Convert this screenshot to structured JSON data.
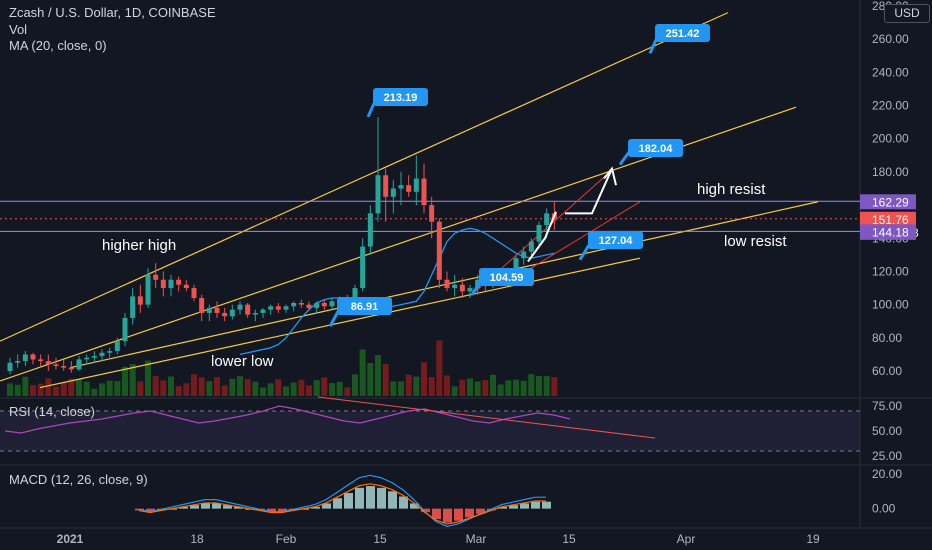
{
  "header": {
    "title": "Zcash / U.S. Dollar, 1D, COINBASE",
    "volume_label": "Vol",
    "ma_label": "MA (20, close, 0)",
    "currency": "USD"
  },
  "price_scale": {
    "ticks": [
      "280.00",
      "260.00",
      "240.00",
      "220.00",
      "200.00",
      "180.00",
      "160.00",
      "140.00",
      "120.00",
      "100.00",
      "80.00",
      "60.00"
    ],
    "badges": [
      {
        "value": "162.29",
        "color": "#7e57c2"
      },
      {
        "value": "151.76",
        "sub": "16:49:48",
        "color": "#ef5350"
      },
      {
        "value": "144.18",
        "color": "#7e57c2"
      }
    ]
  },
  "time_axis": [
    "2021",
    "18",
    "Feb",
    "15",
    "Mar",
    "15",
    "Apr",
    "19"
  ],
  "annotations": {
    "text": [
      "higher high",
      "lower low",
      "high resist",
      "low resist"
    ],
    "callouts": [
      "251.42",
      "213.19",
      "182.04",
      "127.04",
      "86.91",
      "104.59"
    ]
  },
  "rsi": {
    "label": "RSI (14, close)",
    "ticks": [
      "75.00",
      "50.00",
      "25.00"
    ]
  },
  "macd": {
    "label": "MACD (12, 26, close, 9)",
    "ticks": [
      "20.00",
      "0.00"
    ]
  },
  "colors": {
    "up": "#26a69a",
    "down": "#ef5350",
    "ma": "#2196f3",
    "channel": "#f7c948",
    "resist": "#9c8cf0",
    "rsi": "#ab47bc",
    "callout": "#2196f3"
  },
  "chart_data": {
    "type": "candlestick",
    "title": "Zcash / U.S. Dollar, 1D, COINBASE",
    "ylim": [
      46,
      280
    ],
    "ohlc": [
      [
        60,
        68,
        58,
        65
      ],
      [
        65,
        70,
        62,
        66
      ],
      [
        66,
        72,
        63,
        70
      ],
      [
        70,
        71,
        64,
        67
      ],
      [
        67,
        70,
        63,
        66
      ],
      [
        66,
        70,
        60,
        64
      ],
      [
        64,
        68,
        61,
        63
      ],
      [
        63,
        67,
        60,
        62
      ],
      [
        62,
        66,
        59,
        61
      ],
      [
        61,
        69,
        60,
        67
      ],
      [
        67,
        70,
        64,
        68
      ],
      [
        68,
        72,
        65,
        69
      ],
      [
        69,
        73,
        66,
        71
      ],
      [
        71,
        74,
        68,
        72
      ],
      [
        72,
        80,
        70,
        78
      ],
      [
        78,
        95,
        75,
        92
      ],
      [
        92,
        110,
        88,
        105
      ],
      [
        105,
        112,
        95,
        100
      ],
      [
        100,
        122,
        98,
        118
      ],
      [
        118,
        125,
        110,
        115
      ],
      [
        115,
        120,
        105,
        110
      ],
      [
        110,
        118,
        105,
        115
      ],
      [
        115,
        117,
        108,
        112
      ],
      [
        112,
        115,
        108,
        110
      ],
      [
        110,
        112,
        102,
        104
      ],
      [
        104,
        106,
        90,
        95
      ],
      [
        95,
        100,
        90,
        98
      ],
      [
        98,
        102,
        92,
        95
      ],
      [
        95,
        98,
        90,
        93
      ],
      [
        93,
        100,
        91,
        97
      ],
      [
        97,
        102,
        94,
        100
      ],
      [
        100,
        101,
        92,
        94
      ],
      [
        94,
        97,
        90,
        95
      ],
      [
        95,
        98,
        92,
        97
      ],
      [
        97,
        100,
        94,
        99
      ],
      [
        99,
        101,
        95,
        97
      ],
      [
        97,
        100,
        95,
        99
      ],
      [
        99,
        102,
        96,
        101
      ],
      [
        101,
        103,
        98,
        100
      ],
      [
        100,
        102,
        96,
        98
      ],
      [
        98,
        102,
        95,
        101
      ],
      [
        101,
        103,
        97,
        99
      ],
      [
        99,
        104,
        97,
        102
      ],
      [
        102,
        105,
        100,
        103
      ],
      [
        103,
        106,
        100,
        101
      ],
      [
        101,
        112,
        100,
        110
      ],
      [
        110,
        140,
        108,
        135
      ],
      [
        135,
        160,
        130,
        155
      ],
      [
        155,
        213,
        150,
        178
      ],
      [
        178,
        182,
        150,
        165
      ],
      [
        165,
        175,
        155,
        170
      ],
      [
        170,
        180,
        160,
        172
      ],
      [
        172,
        178,
        165,
        168
      ],
      [
        168,
        190,
        160,
        176
      ],
      [
        176,
        185,
        155,
        160
      ],
      [
        160,
        165,
        140,
        150
      ],
      [
        150,
        152,
        110,
        115
      ],
      [
        115,
        120,
        108,
        110
      ],
      [
        110,
        118,
        105,
        112
      ],
      [
        112,
        116,
        104,
        108
      ],
      [
        108,
        112,
        104,
        110
      ],
      [
        110,
        118,
        106,
        115
      ],
      [
        115,
        118,
        108,
        112
      ],
      [
        112,
        118,
        110,
        116
      ],
      [
        116,
        120,
        112,
        118
      ],
      [
        118,
        122,
        114,
        120
      ],
      [
        120,
        130,
        118,
        128
      ],
      [
        128,
        135,
        124,
        132
      ],
      [
        132,
        140,
        128,
        138
      ],
      [
        138,
        150,
        134,
        148
      ],
      [
        148,
        158,
        140,
        155
      ],
      [
        155,
        162,
        145,
        152
      ]
    ],
    "ma20_close": [
      70,
      71,
      72,
      73,
      74,
      76,
      80,
      86,
      92,
      97,
      101,
      103,
      104,
      104,
      103,
      102,
      100,
      99,
      98,
      98,
      99,
      100,
      101,
      102,
      108,
      118,
      128,
      138,
      143,
      145,
      146,
      145,
      143,
      140,
      137,
      134,
      131,
      129,
      128,
      129,
      130,
      131
    ],
    "rsi_values": [
      50,
      48,
      52,
      55,
      58,
      60,
      62,
      65,
      68,
      70,
      66,
      62,
      58,
      60,
      63,
      66,
      70,
      75,
      72,
      68,
      64,
      60,
      58,
      62,
      66,
      70,
      72,
      68,
      64,
      60,
      58,
      62,
      65,
      68,
      66,
      62
    ],
    "macd_histogram": [
      -1,
      -2,
      -1,
      0,
      1,
      2,
      3,
      3,
      2,
      1,
      0,
      -1,
      -2,
      -2,
      -1,
      0,
      1,
      3,
      6,
      9,
      12,
      13,
      12,
      10,
      7,
      3,
      -2,
      -6,
      -8,
      -7,
      -5,
      -3,
      -1,
      1,
      2,
      3,
      4,
      4
    ],
    "lines": {
      "high_resist": 162.29,
      "low_resist": 144.18,
      "last_price": 151.76
    },
    "annotation_values": [
      251.42,
      213.19,
      182.04,
      127.04,
      86.91,
      104.59
    ]
  }
}
